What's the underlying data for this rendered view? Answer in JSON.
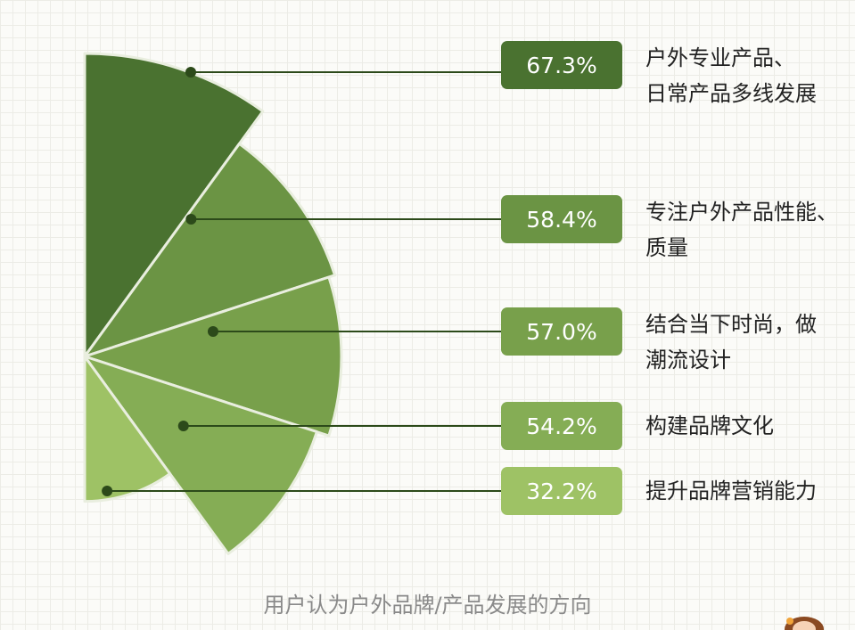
{
  "chart_data": {
    "type": "pie",
    "variant": "polar-area half pie",
    "categories": [
      "户外专业产品、\n日常产品多线发展",
      "专注户外产品性能、\n质量",
      "结合当下时尚，做\n潮流设计",
      "构建品牌文化",
      "提升品牌营销能力"
    ],
    "values": [
      67.3,
      58.4,
      57.0,
      54.2,
      32.2
    ],
    "value_labels": [
      "67.3%",
      "58.4%",
      "57.0%",
      "54.2%",
      "32.2%"
    ],
    "colors": [
      "#4a7230",
      "#6b9444",
      "#78a04b",
      "#85ad55",
      "#9ec265"
    ],
    "caption": "用户认为户外品牌/产品发展的方向"
  }
}
